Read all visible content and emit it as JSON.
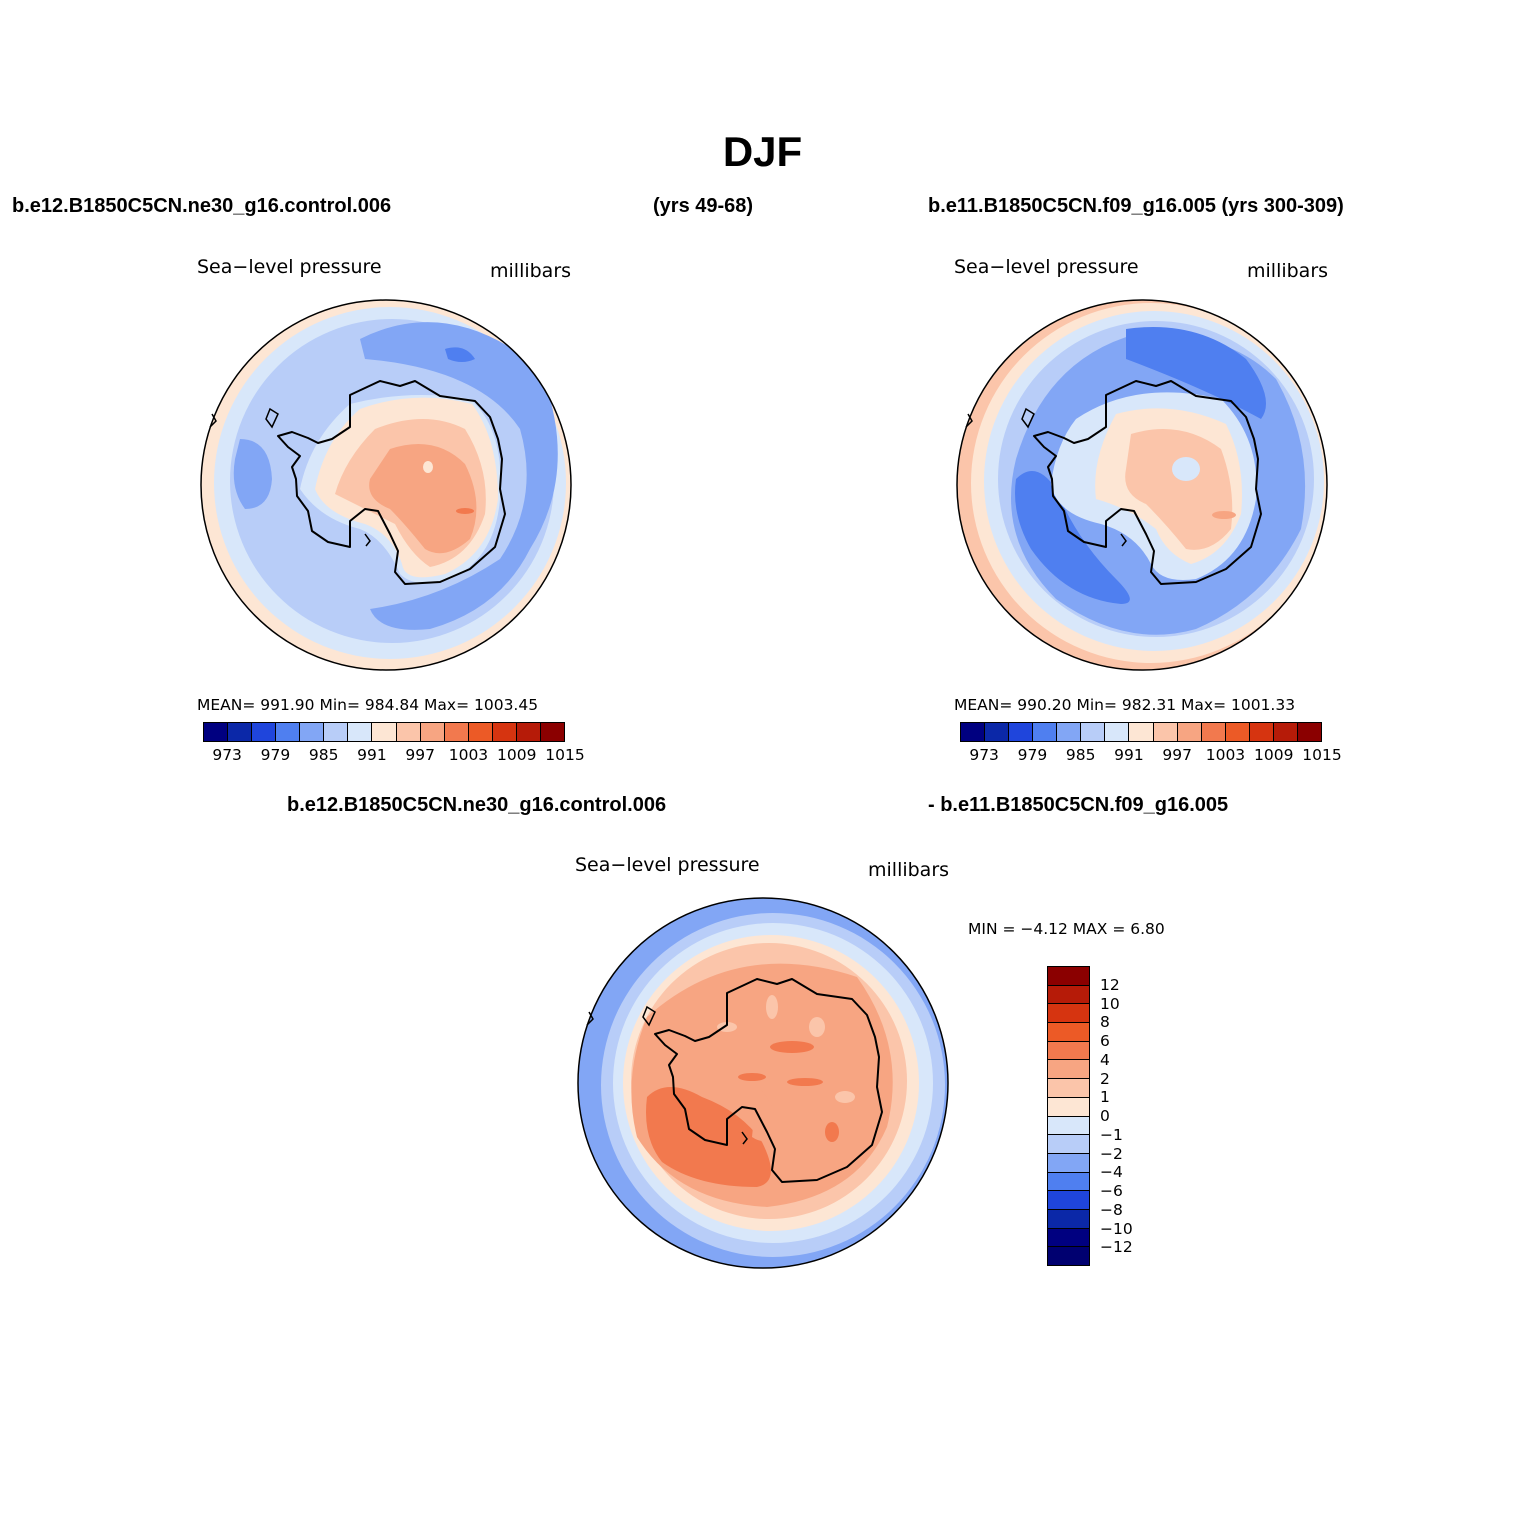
{
  "title": "DJF",
  "header": {
    "left_case": "b.e12.B1850C5CN.ne30_g16.control.006",
    "left_years": "(yrs 49-68)",
    "right_case": "b.e11.B1850C5CN.f09_g16.005 (yrs 300-309)",
    "diff_left": "b.e12.B1850C5CN.ne30_g16.control.006",
    "diff_right": "- b.e11.B1850C5CN.f09_g16.005"
  },
  "panels": [
    {
      "variable": "Sea−level pressure",
      "units": "millibars",
      "stats_text": "MEAN=  991.90   Min=  984.84   Max=  1003.45",
      "stats": {
        "mean": 991.9,
        "min": 984.84,
        "max": 1003.45
      }
    },
    {
      "variable": "Sea−level pressure",
      "units": "millibars",
      "stats_text": "MEAN=  990.20   Min=  982.31   Max=  1001.33",
      "stats": {
        "mean": 990.2,
        "min": 982.31,
        "max": 1001.33
      }
    }
  ],
  "diff_panel": {
    "variable": "Sea−level pressure",
    "units": "millibars",
    "stats_text": "MIN =   −4.12  MAX =     6.80",
    "stats": {
      "min": -4.12,
      "max": 6.8
    }
  },
  "colorbar_abs": {
    "colors": [
      "#000080",
      "#0b28a8",
      "#1f45dc",
      "#4f7ff0",
      "#82a6f5",
      "#b8cdf8",
      "#d8e7fa",
      "#fde6d4",
      "#fbc5aa",
      "#f7a582",
      "#f2794e",
      "#ec5a26",
      "#d63410",
      "#b61b08",
      "#8b0000"
    ],
    "ticks": [
      "973",
      "979",
      "985",
      "991",
      "997",
      "1003",
      "1009",
      "1015"
    ]
  },
  "colorbar_diff": {
    "colors": [
      "#8b0000",
      "#b61b08",
      "#d63410",
      "#ec5a26",
      "#f2794e",
      "#f7a582",
      "#fbc5aa",
      "#fde6d4",
      "#d8e7fa",
      "#b8cdf8",
      "#82a6f5",
      "#4f7ff0",
      "#1f45dc",
      "#0b28a8",
      "#000080",
      "#000070"
    ],
    "ticks": [
      "12",
      "10",
      "8",
      "6",
      "4",
      "2",
      "1",
      "0",
      "−1",
      "−2",
      "−4",
      "−6",
      "−8",
      "−10",
      "−12"
    ]
  }
}
